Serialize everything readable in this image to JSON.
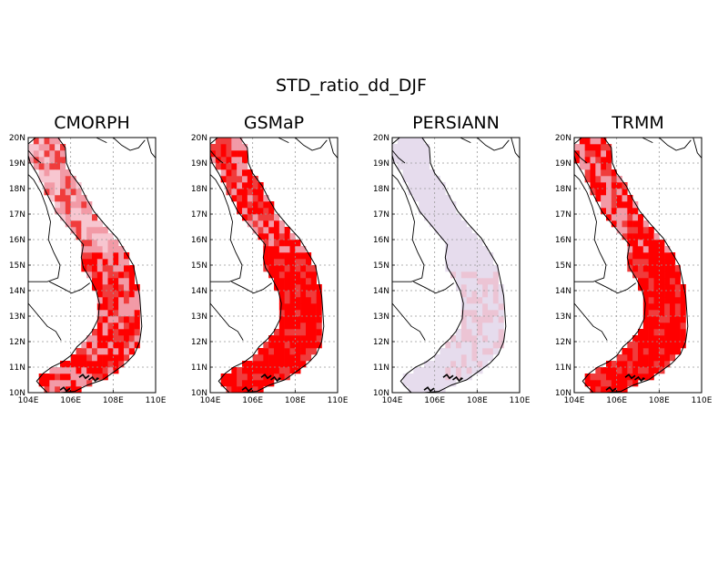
{
  "figure": {
    "title": "STD_ratio_dd_DJF",
    "lon_ticks": [
      "104E",
      "106E",
      "108E",
      "110E"
    ],
    "lat_ticks": [
      "10N",
      "11N",
      "12N",
      "13N",
      "14N",
      "15N",
      "16N",
      "17N",
      "18N",
      "19N",
      "20N"
    ]
  },
  "panels": [
    {
      "title": "CMORPH",
      "scheme": "red"
    },
    {
      "title": "GSMaP",
      "scheme": "red"
    },
    {
      "title": "PERSIANN",
      "scheme": "lavender"
    },
    {
      "title": "TRMM",
      "scheme": "red"
    }
  ],
  "colors": {
    "high": "#ff0000",
    "mid": "#f03c3c",
    "light": "#f29aa6",
    "pale": "#f7c6d0",
    "lavender": "#e6dced",
    "lavender_pink": "#ecc4d4",
    "grid": "#999999"
  },
  "extent": {
    "lon": [
      104,
      110
    ],
    "lat": [
      10,
      20
    ]
  }
}
